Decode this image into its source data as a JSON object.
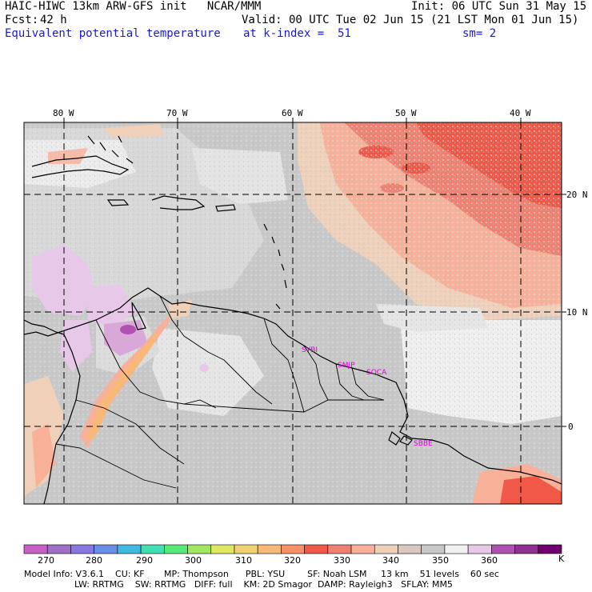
{
  "header": {
    "model": "HAIC-HIWC 13km ARW-GFS init   NCAR/MMM",
    "forecast_label": "Fcst:",
    "forecast_value": "42 h",
    "field": "Equivalent potential temperature",
    "init": "Init: 06 UTC Sun 31 May 15",
    "valid": "Valid: 00 UTC Tue 02 Jun 15 (21 LST Mon 01 Jun 15)",
    "level": "at k-index =  51",
    "smoothing": "sm= 2"
  },
  "map": {
    "lon_labels": [
      "80 W",
      "70 W",
      "60 W",
      "50 W",
      "40 W"
    ],
    "lat_labels": [
      "20 N",
      "10 N",
      "0"
    ],
    "stations": [
      "SYBI",
      "SMJP",
      "SOCA",
      "SBBE"
    ]
  },
  "colorbar": {
    "colors": [
      "#c860c8",
      "#a070c8",
      "#8878e0",
      "#6890e8",
      "#40b8e0",
      "#40e0b0",
      "#58e878",
      "#a0e860",
      "#e0e860",
      "#f0d070",
      "#f8b878",
      "#f89068",
      "#f05848",
      "#f08070",
      "#f8b098",
      "#f0d0b8",
      "#d8c8c0",
      "#c8c8c8",
      "#f0f0f0",
      "#e8c8e8",
      "#b050b0",
      "#903090",
      "#700070"
    ],
    "ticks": [
      "270",
      "280",
      "290",
      "300",
      "310",
      "320",
      "330",
      "340",
      "350",
      "360"
    ],
    "unit": "K"
  },
  "footer": {
    "line1": "Model Info: V3.6.1    CU: KF       MP: Thompson      PBL: YSU        SF: Noah LSM     13 km    51 levels    60 sec",
    "line2": "                  LW: RRTMG    SW: RRTMG   DIFF: full    KM: 2D Smagor  DAMP: Rayleigh3   SFLAY: MM5"
  }
}
